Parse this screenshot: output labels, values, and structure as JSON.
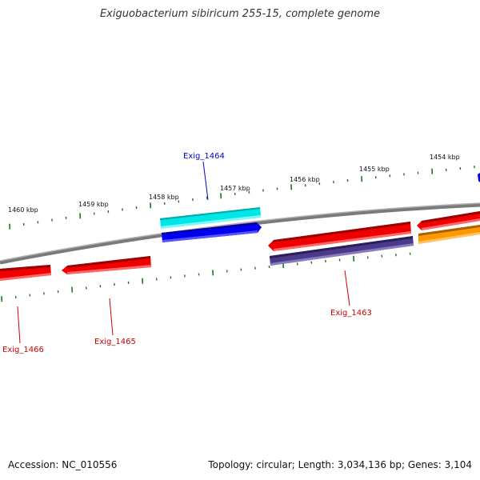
{
  "title": "Exiguobacterium sibiricum 255-15, complete genome",
  "footer": {
    "accession": "Accession: NC_010556",
    "summary": "Topology: circular; Length: 3,034,136 bp; Genes: 3,104"
  },
  "ruler_labels": [
    "1460 kbp",
    "1459 kbp",
    "1458 kbp",
    "1457 kbp",
    "1456 kbp",
    "1455 kbp",
    "1454 kbp"
  ],
  "gene_labels": [
    {
      "name": "Exig_1464",
      "color": "#0000cc"
    },
    {
      "name": "Exig_1463",
      "color": "#cc0000"
    },
    {
      "name": "Exig_1465",
      "color": "#cc0000"
    },
    {
      "name": "Exig_1466",
      "color": "#cc0000"
    }
  ],
  "colors": {
    "backbone": "#888888",
    "tick": "#1a7a1a",
    "cds_red": "#ee0000",
    "gene_blue": "#0000ee",
    "gene_cyan": "#00e5e5",
    "gene_purple": "#4a3a8a",
    "gene_orange": "#ff9900"
  }
}
